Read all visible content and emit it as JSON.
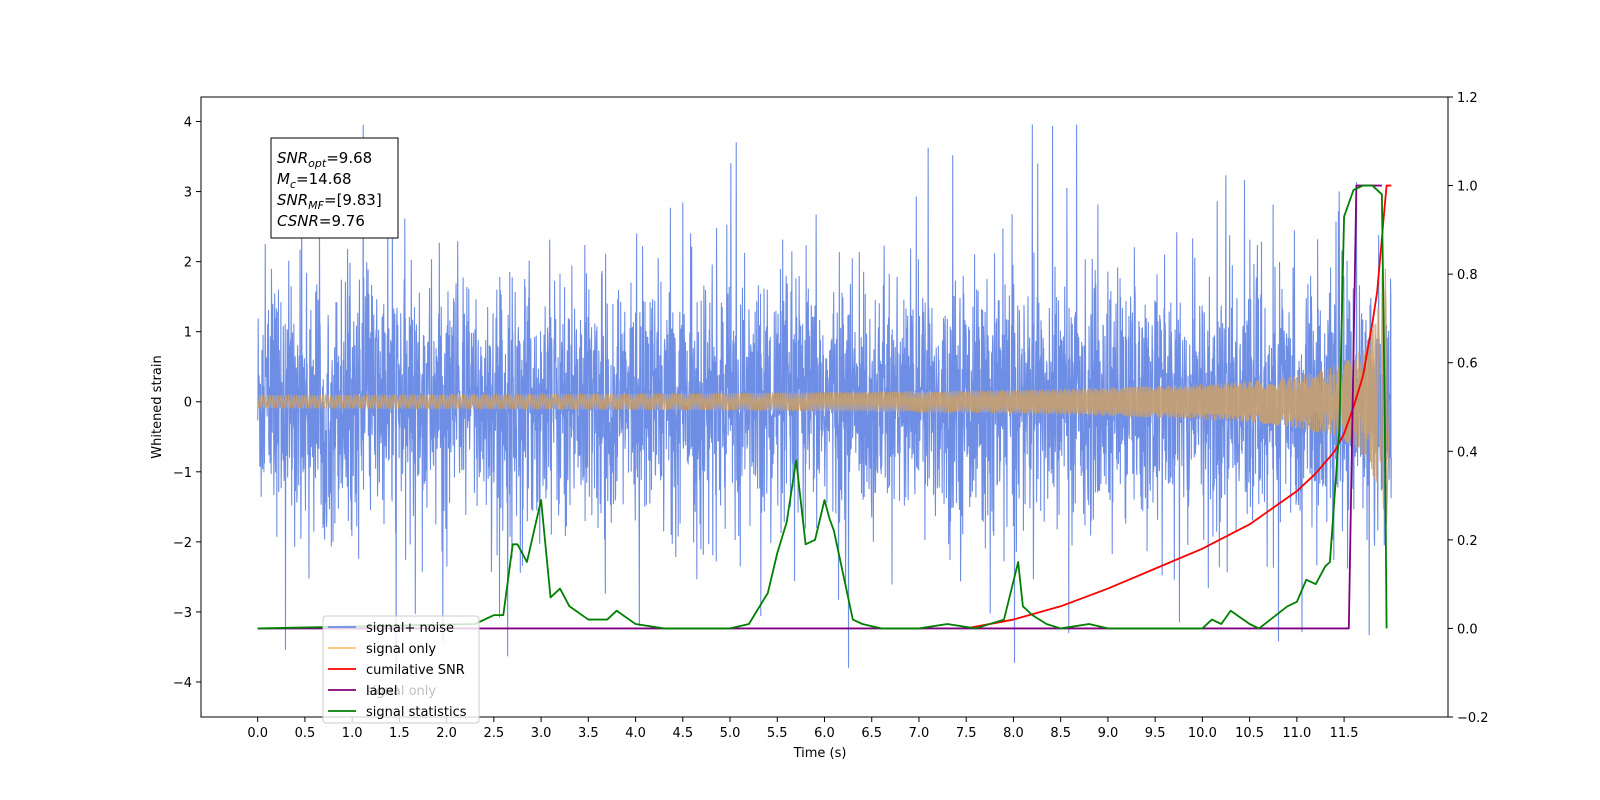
{
  "chart_data": {
    "type": "line",
    "xlabel": "Time (s)",
    "ylabel": "Whitened strain",
    "xlim": [
      -0.6,
      12.6
    ],
    "ylim": [
      -4.5,
      4.35
    ],
    "y2lim": [
      -0.2,
      1.2
    ],
    "x_ticks": [
      "0.0",
      "0.5",
      "1.0",
      "1.5",
      "2.0",
      "2.5",
      "3.0",
      "3.5",
      "4.0",
      "4.5",
      "5.0",
      "5.5",
      "6.0",
      "6.5",
      "7.0",
      "7.5",
      "8.0",
      "8.5",
      "9.0",
      "9.5",
      "10.0",
      "10.5",
      "11.0",
      "11.5"
    ],
    "y_ticks": [
      "4",
      "3",
      "2",
      "1",
      "0",
      "−1",
      "−2",
      "−3",
      "−4"
    ],
    "y2_ticks": [
      "1.2",
      "1.0",
      "0.8",
      "0.6",
      "0.4",
      "0.2",
      "0.0",
      "−0.2"
    ],
    "annotation": {
      "lines": [
        {
          "name": "SNR",
          "sub": "opt",
          "value": "=9.68"
        },
        {
          "name": "M",
          "sub": "c",
          "value": "=14.68"
        },
        {
          "name": "SNR",
          "sub": "MF",
          "value": "=[9.83]"
        },
        {
          "name": "CSNR",
          "sub": "",
          "value": "=9.76"
        }
      ]
    },
    "legend": {
      "placement": "lower-left",
      "entries": [
        {
          "label": "signal+ noise",
          "color": "#6e8ee6"
        },
        {
          "label": "signal only",
          "color": "#ffc36b"
        },
        {
          "label": "cumilative SNR",
          "color": "#ff0000"
        },
        {
          "label": "label",
          "color": "#800080"
        },
        {
          "label": "signal statistics",
          "color": "#008000"
        }
      ],
      "occluded_text": "signal only"
    },
    "series": [
      {
        "name": "signal+ noise",
        "axis": "left",
        "color": "#6e8ee6",
        "kind": "noise",
        "x_range": [
          0.0,
          12.0
        ],
        "std": 1.0,
        "peak_range": [
          -4.1,
          3.95
        ]
      },
      {
        "name": "signal only",
        "axis": "left",
        "color": "#c8a070",
        "kind": "chirp",
        "x_range": [
          0.0,
          12.0
        ],
        "peak_amplitude": 1.9,
        "merger_time": 11.95
      },
      {
        "name": "cumilative SNR",
        "axis": "right",
        "color": "#ff0000",
        "x": [
          7.5,
          8.0,
          8.5,
          9.0,
          9.5,
          10.0,
          10.5,
          11.0,
          11.2,
          11.4,
          11.5,
          11.6,
          11.7,
          11.8,
          11.85,
          11.9,
          11.92,
          11.95,
          12.0
        ],
        "y": [
          0.0,
          0.02,
          0.05,
          0.09,
          0.135,
          0.18,
          0.235,
          0.31,
          0.35,
          0.4,
          0.44,
          0.5,
          0.57,
          0.69,
          0.76,
          0.88,
          0.93,
          1.0,
          1.0
        ]
      },
      {
        "name": "label",
        "axis": "right",
        "color": "#800080",
        "x": [
          0.0,
          11.55,
          11.63,
          11.9,
          11.9
        ],
        "y": [
          0.0,
          0.0,
          1.0,
          1.0,
          1.0
        ]
      },
      {
        "name": "signal statistics",
        "axis": "right",
        "color": "#008000",
        "x": [
          0.0,
          2.3,
          2.5,
          2.6,
          2.7,
          2.75,
          2.85,
          3.0,
          3.1,
          3.2,
          3.3,
          3.5,
          3.7,
          3.8,
          4.0,
          4.3,
          4.6,
          5.0,
          5.2,
          5.4,
          5.5,
          5.6,
          5.7,
          5.8,
          5.9,
          6.0,
          6.05,
          6.1,
          6.3,
          6.4,
          6.6,
          7.0,
          7.3,
          7.6,
          7.9,
          8.05,
          8.1,
          8.2,
          8.35,
          8.5,
          8.8,
          9.0,
          9.2,
          10.0,
          10.1,
          10.2,
          10.3,
          10.5,
          10.6,
          10.9,
          11.0,
          11.1,
          11.2,
          11.3,
          11.35,
          11.45,
          11.5,
          11.6,
          11.7,
          11.8,
          11.9,
          11.93,
          11.95
        ],
        "y": [
          0.0,
          0.01,
          0.03,
          0.03,
          0.19,
          0.19,
          0.15,
          0.29,
          0.07,
          0.09,
          0.05,
          0.02,
          0.02,
          0.04,
          0.01,
          0.0,
          0.0,
          0.0,
          0.01,
          0.08,
          0.17,
          0.24,
          0.38,
          0.19,
          0.2,
          0.29,
          0.25,
          0.22,
          0.02,
          0.01,
          0.0,
          0.0,
          0.01,
          0.0,
          0.02,
          0.15,
          0.05,
          0.03,
          0.01,
          0.0,
          0.01,
          0.0,
          0.0,
          0.0,
          0.02,
          0.01,
          0.04,
          0.01,
          0.0,
          0.05,
          0.06,
          0.11,
          0.1,
          0.14,
          0.15,
          0.45,
          0.93,
          0.99,
          1.0,
          1.0,
          0.98,
          0.5,
          0.0
        ]
      }
    ]
  }
}
